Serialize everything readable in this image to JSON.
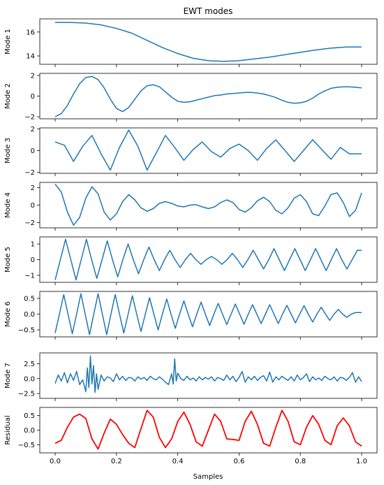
{
  "title": "EWT modes",
  "colors": {
    "mode": "#1f77b4",
    "residual": "#ff0000",
    "axes": "#000000",
    "background": "#ffffff"
  },
  "chart_data": {
    "type": "line",
    "title": "EWT modes",
    "xlabel": "Samples",
    "xlim": [
      0.0,
      1.0
    ],
    "xticks": [
      0.0,
      0.2,
      0.4,
      0.6,
      0.8,
      1.0
    ],
    "xtick_labels": [
      "0.0",
      "0.2",
      "0.4",
      "0.6",
      "0.8",
      "1.0"
    ],
    "grid": false,
    "panels": [
      {
        "ylabel": "Mode 1",
        "color": "#1f77b4",
        "ylim": [
          13.3,
          17.1
        ],
        "yticks": [
          14,
          16
        ],
        "ytick_labels": [
          "14",
          "16"
        ],
        "x": [
          0,
          0.05,
          0.1,
          0.15,
          0.2,
          0.25,
          0.3,
          0.35,
          0.4,
          0.45,
          0.5,
          0.55,
          0.6,
          0.65,
          0.7,
          0.75,
          0.8,
          0.85,
          0.9,
          0.95,
          1.0
        ],
        "y": [
          16.8,
          16.8,
          16.75,
          16.6,
          16.3,
          15.9,
          15.3,
          14.7,
          14.2,
          13.8,
          13.6,
          13.55,
          13.6,
          13.75,
          13.9,
          14.1,
          14.3,
          14.5,
          14.65,
          14.75,
          14.75
        ]
      },
      {
        "ylabel": "Mode 2",
        "color": "#1f77b4",
        "ylim": [
          -2.2,
          2.2
        ],
        "yticks": [
          -2,
          0,
          2
        ],
        "ytick_labels": [
          "−2",
          "0",
          "2"
        ],
        "x": [
          0,
          0.02,
          0.04,
          0.06,
          0.08,
          0.1,
          0.12,
          0.14,
          0.16,
          0.18,
          0.2,
          0.22,
          0.24,
          0.26,
          0.28,
          0.3,
          0.32,
          0.34,
          0.36,
          0.38,
          0.4,
          0.42,
          0.44,
          0.46,
          0.48,
          0.5,
          0.52,
          0.54,
          0.56,
          0.58,
          0.6,
          0.62,
          0.64,
          0.66,
          0.68,
          0.7,
          0.72,
          0.74,
          0.76,
          0.78,
          0.8,
          0.82,
          0.84,
          0.86,
          0.88,
          0.9,
          0.92,
          0.94,
          0.96,
          0.98,
          1.0
        ],
        "y": [
          -2.0,
          -1.7,
          -0.9,
          0.2,
          1.2,
          1.8,
          1.9,
          1.6,
          0.8,
          -0.3,
          -1.2,
          -1.5,
          -1.1,
          -0.3,
          0.5,
          1.0,
          1.1,
          0.9,
          0.4,
          -0.1,
          -0.5,
          -0.6,
          -0.55,
          -0.4,
          -0.25,
          -0.1,
          0.05,
          0.1,
          0.2,
          0.25,
          0.3,
          0.35,
          0.35,
          0.3,
          0.2,
          0.05,
          -0.15,
          -0.4,
          -0.6,
          -0.7,
          -0.65,
          -0.5,
          -0.2,
          0.2,
          0.5,
          0.75,
          0.85,
          0.9,
          0.9,
          0.85,
          0.8
        ]
      },
      {
        "ylabel": "Mode 3",
        "color": "#1f77b4",
        "ylim": [
          -2.1,
          2.1
        ],
        "yticks": [
          -2,
          0,
          2
        ],
        "ytick_labels": [
          "−2",
          "0",
          "2"
        ],
        "x": [
          0,
          0.03,
          0.06,
          0.09,
          0.12,
          0.15,
          0.18,
          0.21,
          0.24,
          0.27,
          0.3,
          0.33,
          0.36,
          0.39,
          0.42,
          0.45,
          0.48,
          0.51,
          0.54,
          0.57,
          0.6,
          0.63,
          0.66,
          0.69,
          0.72,
          0.75,
          0.78,
          0.81,
          0.84,
          0.87,
          0.9,
          0.93,
          0.96,
          1.0
        ],
        "y": [
          0.8,
          0.5,
          -1.0,
          0.4,
          1.4,
          -0.3,
          -1.8,
          0.3,
          1.9,
          0.4,
          -1.8,
          -0.2,
          1.4,
          0.3,
          -0.9,
          0.1,
          0.8,
          -0.1,
          -0.6,
          0.2,
          0.6,
          0.0,
          -0.9,
          0.2,
          1.0,
          0.0,
          -1.0,
          0.0,
          1.0,
          0.1,
          -0.8,
          0.3,
          -0.3,
          -0.3
        ]
      },
      {
        "ylabel": "Mode 4",
        "color": "#1f77b4",
        "ylim": [
          -2.6,
          2.6
        ],
        "yticks": [
          -2,
          0,
          2
        ],
        "ytick_labels": [
          "−2",
          "0",
          "2"
        ],
        "x": [
          0,
          0.02,
          0.04,
          0.06,
          0.08,
          0.1,
          0.12,
          0.14,
          0.16,
          0.18,
          0.2,
          0.22,
          0.24,
          0.26,
          0.28,
          0.3,
          0.32,
          0.34,
          0.36,
          0.38,
          0.4,
          0.42,
          0.44,
          0.46,
          0.48,
          0.5,
          0.52,
          0.54,
          0.56,
          0.58,
          0.6,
          0.62,
          0.64,
          0.66,
          0.68,
          0.7,
          0.72,
          0.74,
          0.76,
          0.78,
          0.8,
          0.82,
          0.84,
          0.86,
          0.88,
          0.9,
          0.92,
          0.94,
          0.96,
          0.98,
          1.0
        ],
        "y": [
          2.4,
          1.5,
          -0.8,
          -2.3,
          -1.4,
          0.8,
          2.1,
          1.3,
          -0.8,
          -1.7,
          -1.0,
          0.4,
          1.2,
          0.6,
          -0.3,
          -0.7,
          -0.4,
          0.2,
          0.4,
          0.2,
          -0.1,
          -0.2,
          0.0,
          0.05,
          -0.2,
          -0.4,
          -0.2,
          0.3,
          0.6,
          0.3,
          -0.5,
          -0.8,
          -0.3,
          0.5,
          0.9,
          0.4,
          -0.6,
          -1.0,
          -0.3,
          0.8,
          1.2,
          0.4,
          -1.0,
          -1.2,
          -0.1,
          1.2,
          1.4,
          0.3,
          -1.3,
          -0.6,
          1.4
        ]
      },
      {
        "ylabel": "Mode 5",
        "color": "#1f77b4",
        "ylim": [
          -1.45,
          1.45
        ],
        "yticks": [
          -1,
          0,
          1
        ],
        "ytick_labels": [
          "−1",
          "0",
          "1"
        ],
        "x": [
          0,
          0.017,
          0.034,
          0.051,
          0.068,
          0.085,
          0.102,
          0.119,
          0.136,
          0.153,
          0.17,
          0.187,
          0.204,
          0.221,
          0.238,
          0.255,
          0.272,
          0.289,
          0.306,
          0.323,
          0.34,
          0.357,
          0.374,
          0.391,
          0.408,
          0.425,
          0.442,
          0.459,
          0.476,
          0.493,
          0.51,
          0.527,
          0.544,
          0.561,
          0.578,
          0.595,
          0.612,
          0.629,
          0.646,
          0.663,
          0.68,
          0.697,
          0.714,
          0.731,
          0.748,
          0.765,
          0.782,
          0.799,
          0.816,
          0.833,
          0.85,
          0.867,
          0.884,
          0.901,
          0.918,
          0.935,
          0.952,
          0.969,
          0.986,
          1.0
        ],
        "y": [
          -1.3,
          0.0,
          1.3,
          0.0,
          -1.3,
          0.0,
          1.3,
          0.0,
          -1.2,
          0.0,
          1.2,
          0.0,
          -1.1,
          0.0,
          1.0,
          0.0,
          -0.9,
          0.0,
          0.8,
          0.0,
          -0.7,
          0.0,
          0.6,
          0.0,
          -0.5,
          0.0,
          0.4,
          0.0,
          -0.3,
          0.0,
          0.2,
          0.0,
          -0.3,
          0.0,
          0.4,
          0.0,
          -0.5,
          0.0,
          0.6,
          0.0,
          -0.6,
          0.0,
          0.7,
          0.0,
          -0.7,
          0.0,
          0.7,
          0.0,
          -0.7,
          0.0,
          0.7,
          0.0,
          -0.7,
          0.0,
          0.7,
          0.0,
          -0.6,
          0.0,
          0.6,
          0.6
        ]
      },
      {
        "ylabel": "Mode 6",
        "color": "#1f77b4",
        "ylim": [
          -0.72,
          0.72
        ],
        "yticks": [
          -0.5,
          0.0,
          0.5
        ],
        "ytick_labels": [
          "−0.5",
          "0.0",
          "0.5"
        ],
        "x": [
          0,
          0.014,
          0.028,
          0.042,
          0.056,
          0.07,
          0.084,
          0.098,
          0.112,
          0.126,
          0.14,
          0.154,
          0.168,
          0.182,
          0.196,
          0.21,
          0.224,
          0.238,
          0.252,
          0.266,
          0.28,
          0.294,
          0.308,
          0.322,
          0.336,
          0.35,
          0.364,
          0.378,
          0.392,
          0.406,
          0.42,
          0.434,
          0.448,
          0.462,
          0.476,
          0.49,
          0.504,
          0.518,
          0.532,
          0.546,
          0.56,
          0.574,
          0.588,
          0.602,
          0.616,
          0.63,
          0.644,
          0.658,
          0.672,
          0.686,
          0.7,
          0.714,
          0.728,
          0.742,
          0.756,
          0.77,
          0.784,
          0.798,
          0.812,
          0.826,
          0.84,
          0.854,
          0.868,
          0.882,
          0.896,
          0.91,
          0.924,
          0.938,
          0.952,
          0.966,
          0.98,
          1.0
        ],
        "y": [
          -0.6,
          0.0,
          0.62,
          0.0,
          -0.62,
          0.0,
          0.65,
          0.0,
          -0.65,
          0.0,
          0.65,
          0.0,
          -0.65,
          0.0,
          0.62,
          0.0,
          -0.6,
          0.0,
          0.58,
          0.0,
          -0.55,
          0.0,
          0.52,
          0.0,
          -0.5,
          0.0,
          0.48,
          0.0,
          -0.45,
          0.0,
          0.42,
          0.0,
          -0.4,
          0.0,
          0.38,
          0.0,
          -0.36,
          0.0,
          0.34,
          0.0,
          -0.33,
          0.0,
          0.32,
          0.0,
          -0.32,
          0.0,
          0.3,
          0.0,
          -0.3,
          0.0,
          0.3,
          0.0,
          -0.3,
          0.0,
          0.28,
          0.0,
          -0.28,
          0.0,
          0.27,
          0.0,
          -0.25,
          0.0,
          0.22,
          0.0,
          -0.2,
          0.0,
          0.15,
          0.0,
          -0.1,
          0.0,
          0.05,
          0.05
        ]
      },
      {
        "ylabel": "Mode 7",
        "color": "#1f77b4",
        "ylim": [
          -3.3,
          4.3
        ],
        "yticks": [
          -2.5,
          0.0,
          2.5
        ],
        "ytick_labels": [
          "−2.5",
          "0.0",
          "2.5"
        ],
        "x": [
          0,
          0.01,
          0.02,
          0.03,
          0.04,
          0.05,
          0.06,
          0.07,
          0.08,
          0.09,
          0.1,
          0.105,
          0.11,
          0.115,
          0.12,
          0.125,
          0.13,
          0.135,
          0.14,
          0.15,
          0.16,
          0.17,
          0.18,
          0.19,
          0.2,
          0.21,
          0.22,
          0.23,
          0.24,
          0.25,
          0.26,
          0.27,
          0.28,
          0.29,
          0.3,
          0.31,
          0.32,
          0.33,
          0.34,
          0.35,
          0.36,
          0.37,
          0.38,
          0.385,
          0.39,
          0.395,
          0.4,
          0.41,
          0.42,
          0.43,
          0.44,
          0.45,
          0.46,
          0.47,
          0.48,
          0.49,
          0.5,
          0.51,
          0.52,
          0.53,
          0.54,
          0.55,
          0.56,
          0.57,
          0.58,
          0.59,
          0.6,
          0.61,
          0.62,
          0.63,
          0.64,
          0.65,
          0.66,
          0.67,
          0.68,
          0.69,
          0.7,
          0.71,
          0.72,
          0.73,
          0.74,
          0.75,
          0.76,
          0.77,
          0.78,
          0.79,
          0.8,
          0.81,
          0.82,
          0.83,
          0.84,
          0.85,
          0.86,
          0.87,
          0.88,
          0.89,
          0.9,
          0.91,
          0.92,
          0.93,
          0.94,
          0.95,
          0.96,
          0.97,
          0.98,
          0.99,
          1.0
        ],
        "y": [
          -0.8,
          0.6,
          -0.4,
          1.0,
          -0.7,
          0.8,
          -0.3,
          1.2,
          -1.0,
          -0.2,
          -2.2,
          1.8,
          -1.5,
          3.8,
          -0.9,
          2.2,
          -2.3,
          0.8,
          -1.8,
          0.6,
          -0.4,
          0.3,
          0.1,
          -0.5,
          0.8,
          -0.2,
          0.4,
          -0.3,
          0.2,
          0.1,
          -0.4,
          0.3,
          -0.1,
          0.2,
          -0.3,
          0.4,
          0.0,
          -0.2,
          0.3,
          -0.1,
          -0.6,
          -1.0,
          0.8,
          -0.9,
          3.3,
          -0.4,
          0.9,
          0.0,
          -0.3,
          0.4,
          -0.2,
          0.1,
          -0.4,
          0.3,
          -0.2,
          0.2,
          -0.1,
          0.3,
          -0.4,
          0.2,
          0.0,
          -0.3,
          0.6,
          -0.2,
          0.4,
          -0.5,
          0.2,
          1.2,
          -0.6,
          0.3,
          -0.2,
          0.4,
          -0.3,
          0.2,
          0.5,
          -0.4,
          1.1,
          -0.6,
          0.3,
          -0.2,
          0.4,
          0.0,
          -0.3,
          0.3,
          -0.4,
          0.6,
          -0.2,
          0.2,
          0.8,
          -0.5,
          0.3,
          -0.2,
          0.1,
          -0.3,
          0.4,
          0.0,
          -0.2,
          0.3,
          -0.4,
          0.2,
          0.1,
          -0.3,
          0.2,
          1.0,
          -0.6,
          0.3,
          -0.5
        ]
      },
      {
        "ylabel": "Residual",
        "color": "#ff0000",
        "ylim": [
          -0.78,
          0.78
        ],
        "yticks": [
          -0.5,
          0.0,
          0.5
        ],
        "ytick_labels": [
          "−0.5",
          "0.0",
          "0.5"
        ],
        "x": [
          0,
          0.02,
          0.04,
          0.06,
          0.08,
          0.1,
          0.12,
          0.14,
          0.16,
          0.18,
          0.2,
          0.22,
          0.24,
          0.26,
          0.28,
          0.3,
          0.32,
          0.34,
          0.36,
          0.38,
          0.4,
          0.42,
          0.44,
          0.46,
          0.48,
          0.5,
          0.52,
          0.54,
          0.56,
          0.58,
          0.6,
          0.62,
          0.64,
          0.66,
          0.68,
          0.7,
          0.72,
          0.74,
          0.76,
          0.78,
          0.8,
          0.82,
          0.84,
          0.86,
          0.88,
          0.9,
          0.92,
          0.94,
          0.96,
          0.98,
          1.0
        ],
        "y": [
          -0.45,
          -0.35,
          0.1,
          0.45,
          0.55,
          0.4,
          -0.3,
          -0.65,
          -0.1,
          0.38,
          0.2,
          -0.15,
          -0.45,
          -0.6,
          0.05,
          0.68,
          0.45,
          -0.25,
          -0.6,
          -0.3,
          0.3,
          0.62,
          0.2,
          -0.4,
          -0.55,
          0.0,
          0.55,
          0.3,
          -0.3,
          -0.32,
          -0.35,
          0.3,
          0.65,
          0.2,
          -0.45,
          -0.55,
          0.1,
          0.68,
          0.3,
          -0.4,
          -0.5,
          0.1,
          0.5,
          0.2,
          -0.35,
          -0.5,
          0.15,
          0.42,
          0.15,
          -0.4,
          -0.55
        ]
      }
    ]
  }
}
